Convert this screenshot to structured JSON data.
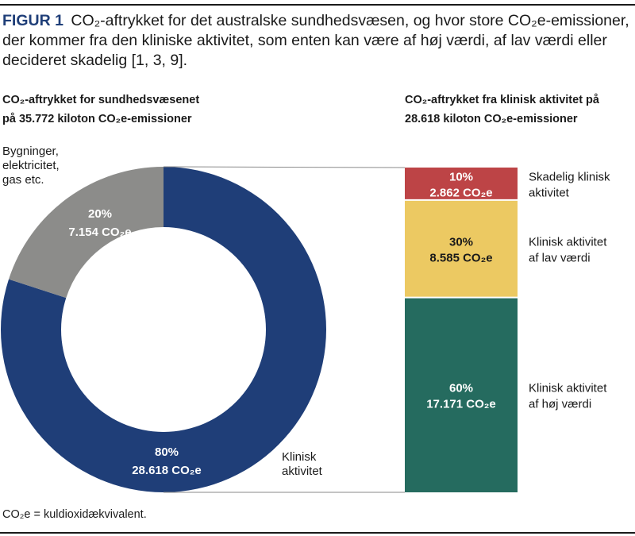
{
  "caption": {
    "figure_label": "FIGUR 1",
    "text": "CO₂-aftrykket for det australske sundhedsvæsen, og hvor store CO₂e-emissioner, der kommer fra den kliniske aktivitet, som enten kan være af høj værdi, af lav værdi eller decideret skadelig [1, 3, 9]."
  },
  "subheads": {
    "left_line1": "CO₂-aftrykket for sundhedsvæsenet",
    "left_line2": "på 35.772 kiloton CO₂e-emissioner",
    "right_line1": "CO₂-aftrykket fra klinisk aktivitet på",
    "right_line2": "28.618 kiloton CO₂e-emissioner"
  },
  "footnote": "CO₂e = kuldioxidækvivalent.",
  "colors": {
    "navy": "#1f3e78",
    "gray": "#8c8c8a",
    "red": "#bd4446",
    "yellow": "#ecc962",
    "green": "#256b5f"
  },
  "chart_data": [
    {
      "type": "pie",
      "variant": "donut",
      "title": "CO₂-aftrykket for sundhedsvæsenet på 35.772 kiloton CO₂e-emissioner",
      "slices": [
        {
          "name": "Klinisk aktivitet",
          "label": "Klinisk\naktivitet",
          "percent": 80,
          "value_text": "28.618 CO₂e",
          "percent_text": "80%",
          "value": 28618,
          "color": "#1f3e78"
        },
        {
          "name": "Bygninger, elektricitet, gas etc.",
          "label": "Bygninger,\nelektricitet,\ngas etc.",
          "percent": 20,
          "value_text": "7.154 CO₂e",
          "percent_text": "20%",
          "value": 7154,
          "color": "#8c8c8a"
        }
      ]
    },
    {
      "type": "bar",
      "variant": "stacked-100",
      "title": "CO₂-aftrykket fra klinisk aktivitet på 28.618 kiloton CO₂e-emissioner",
      "segments": [
        {
          "name": "Skadelig klinisk aktivitet",
          "label": "Skadelig klinisk\naktivitet",
          "percent": 10,
          "value": 2862,
          "percent_text": "10%",
          "value_text": "2.862 CO₂e",
          "color": "#bd4446"
        },
        {
          "name": "Klinisk aktivitet af lav værdi",
          "label": "Klinisk aktivitet\naf lav værdi",
          "percent": 30,
          "value": 8585,
          "percent_text": "30%",
          "value_text": "8.585 CO₂e",
          "color": "#ecc962"
        },
        {
          "name": "Klinisk aktivitet af høj værdi",
          "label": "Klinisk aktivitet\naf høj værdi",
          "percent": 60,
          "value": 17171,
          "percent_text": "60%",
          "value_text": "17.171 CO₂e",
          "color": "#256b5f"
        }
      ]
    }
  ]
}
